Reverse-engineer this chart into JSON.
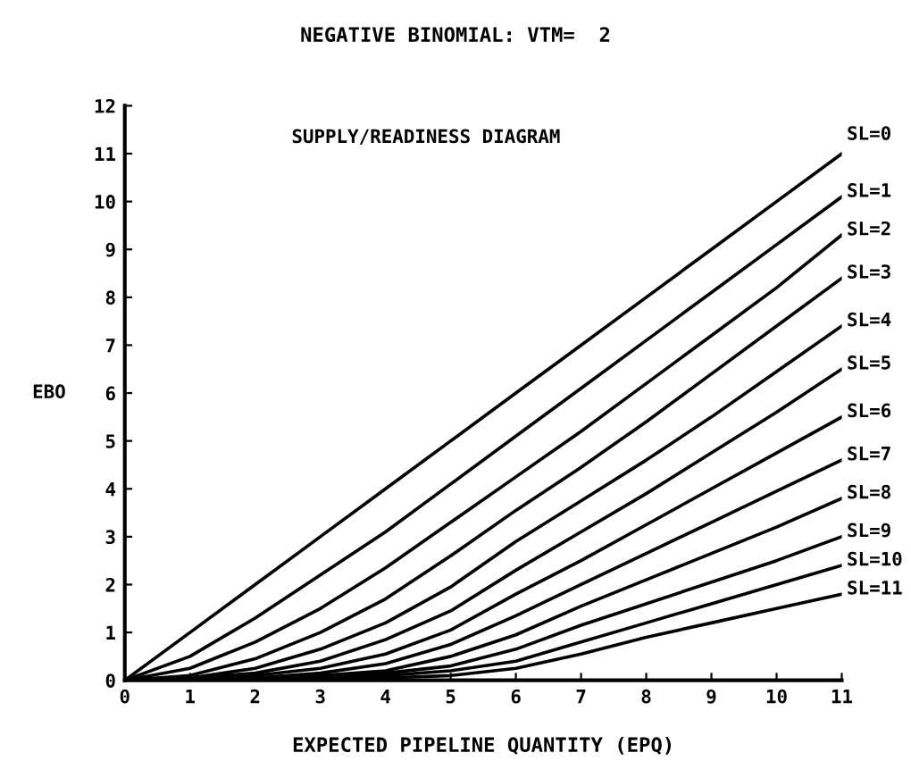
{
  "chart_data": {
    "type": "line",
    "title": "NEGATIVE BINOMIAL: VTM=  2",
    "xlabel": "EXPECTED PIPELINE QUANTITY (EPQ)",
    "ylabel": "EBO",
    "annotations": [
      "SUPPLY/READINESS DIAGRAM"
    ],
    "x": [
      0,
      1,
      2,
      3,
      4,
      5,
      6,
      7,
      8,
      9,
      10,
      11
    ],
    "series": [
      {
        "name": "SL=0",
        "color": "#000000",
        "values": [
          0,
          1,
          2,
          3,
          4,
          5,
          6,
          7,
          8,
          9,
          10,
          11
        ]
      },
      {
        "name": "SL=1",
        "color": "#000000",
        "values": [
          0,
          0.5,
          1.3,
          2.2,
          3.1,
          4.1,
          5.1,
          6.1,
          7.1,
          8.1,
          9.1,
          10.1
        ]
      },
      {
        "name": "SL=2",
        "color": "#000000",
        "values": [
          0,
          0.25,
          0.8,
          1.5,
          2.35,
          3.3,
          4.25,
          5.2,
          6.2,
          7.2,
          8.2,
          9.3
        ]
      },
      {
        "name": "SL=3",
        "color": "#000000",
        "values": [
          0,
          0.1,
          0.45,
          1.0,
          1.7,
          2.6,
          3.55,
          4.45,
          5.4,
          6.4,
          7.4,
          8.4
        ]
      },
      {
        "name": "SL=4",
        "color": "#000000",
        "values": [
          0,
          0.05,
          0.25,
          0.65,
          1.2,
          1.95,
          2.9,
          3.75,
          4.6,
          5.5,
          6.45,
          7.4
        ]
      },
      {
        "name": "SL=5",
        "color": "#000000",
        "values": [
          0,
          0.05,
          0.15,
          0.4,
          0.85,
          1.45,
          2.3,
          3.1,
          3.9,
          4.75,
          5.6,
          6.5
        ]
      },
      {
        "name": "SL=6",
        "color": "#000000",
        "values": [
          0,
          0,
          0.1,
          0.25,
          0.55,
          1.05,
          1.8,
          2.5,
          3.25,
          4.0,
          4.75,
          5.5
        ]
      },
      {
        "name": "SL=7",
        "color": "#000000",
        "values": [
          0,
          0,
          0.05,
          0.15,
          0.35,
          0.75,
          1.35,
          2.0,
          2.65,
          3.3,
          3.95,
          4.6
        ]
      },
      {
        "name": "SL=8",
        "color": "#000000",
        "values": [
          0,
          0,
          0,
          0.1,
          0.2,
          0.5,
          0.95,
          1.55,
          2.1,
          2.65,
          3.2,
          3.8
        ]
      },
      {
        "name": "SL=9",
        "color": "#000000",
        "values": [
          0,
          0,
          0,
          0.05,
          0.15,
          0.3,
          0.65,
          1.15,
          1.6,
          2.05,
          2.5,
          3.0
        ]
      },
      {
        "name": "SL=10",
        "color": "#000000",
        "values": [
          0,
          0,
          0,
          0,
          0.1,
          0.2,
          0.4,
          0.8,
          1.2,
          1.6,
          2.0,
          2.4
        ]
      },
      {
        "name": "SL=11",
        "color": "#000000",
        "values": [
          0,
          0,
          0,
          0,
          0.05,
          0.1,
          0.25,
          0.55,
          0.9,
          1.2,
          1.5,
          1.8
        ]
      }
    ],
    "xlim": [
      0,
      11
    ],
    "ylim": [
      0,
      12
    ],
    "xticks": [
      0,
      1,
      2,
      3,
      4,
      5,
      6,
      7,
      8,
      9,
      10,
      11
    ],
    "yticks": [
      0,
      1,
      2,
      3,
      4,
      5,
      6,
      7,
      8,
      9,
      10,
      11,
      12
    ],
    "grid": false,
    "legend": false,
    "marker": "none",
    "line_style": "solid"
  }
}
